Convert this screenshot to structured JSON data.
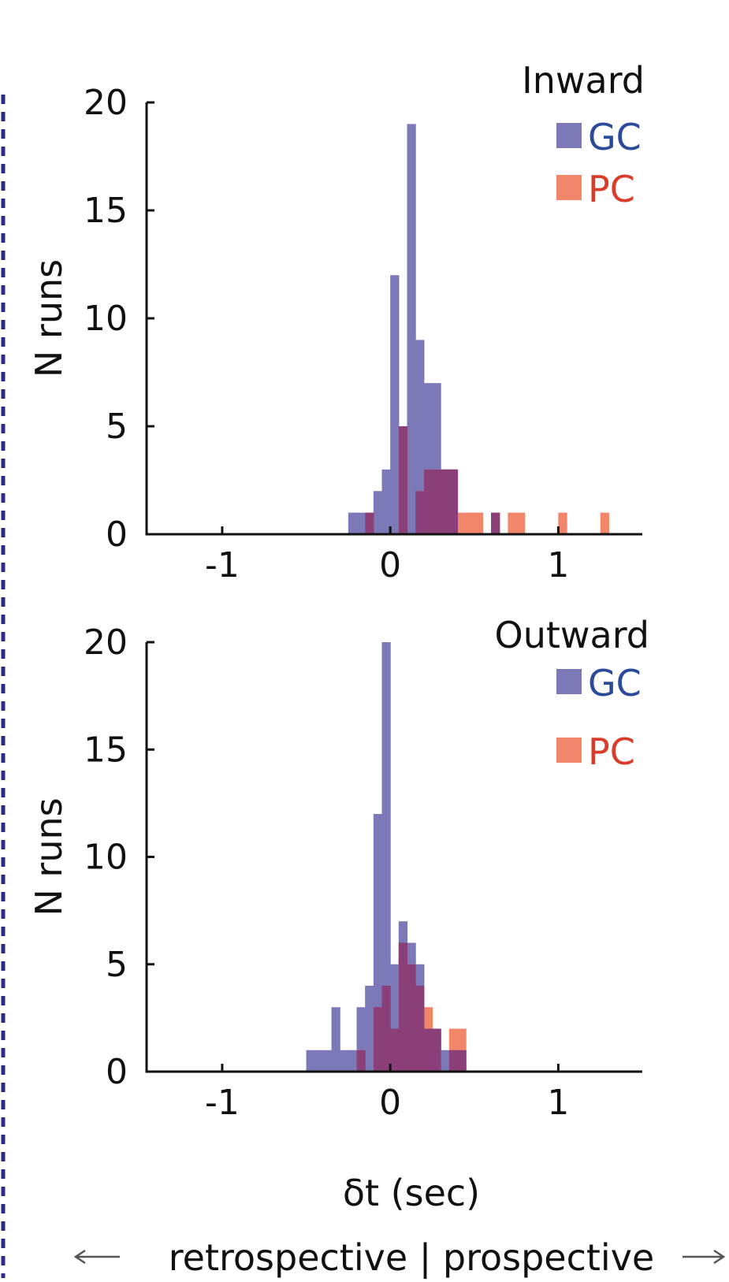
{
  "colors": {
    "gc": "#7b79b8",
    "pc": "#f2866a",
    "overlap": "#8a3f78",
    "gc_text": "#2b4a9a",
    "pc_text": "#d93d2a",
    "axis": "#111111",
    "frame_dash": "#2a2a8a",
    "arrow": "#555555"
  },
  "figure": {
    "xlabel": "δt (sec)",
    "direction_note": "retrospective | prospective"
  },
  "chart_data": [
    {
      "type": "bar",
      "title": "Inward",
      "xlabel": "",
      "ylabel": "N runs",
      "xlim": [
        -1.45,
        1.5
      ],
      "ylim": [
        0,
        20
      ],
      "xticks": [
        -1,
        0,
        1
      ],
      "xtick_labels": [
        "-1",
        "0",
        "1"
      ],
      "yticks": [
        0,
        5,
        10,
        15,
        20
      ],
      "ytick_labels": [
        "0",
        "5",
        "10",
        "15",
        "20"
      ],
      "bin_width": 0.05,
      "legend_position": "top-right",
      "series": [
        {
          "name": "GC",
          "color": "#7b79b8",
          "bins": [
            {
              "x0": -0.25,
              "count": 1
            },
            {
              "x0": -0.2,
              "count": 1
            },
            {
              "x0": -0.15,
              "count": 1
            },
            {
              "x0": -0.1,
              "count": 2
            },
            {
              "x0": -0.05,
              "count": 3
            },
            {
              "x0": 0.0,
              "count": 12
            },
            {
              "x0": 0.05,
              "count": 5
            },
            {
              "x0": 0.1,
              "count": 19
            },
            {
              "x0": 0.15,
              "count": 9
            },
            {
              "x0": 0.2,
              "count": 7
            },
            {
              "x0": 0.25,
              "count": 7
            },
            {
              "x0": 0.3,
              "count": 3
            },
            {
              "x0": 0.35,
              "count": 3
            },
            {
              "x0": 0.6,
              "count": 1
            }
          ]
        },
        {
          "name": "PC",
          "color": "#f2866a",
          "bins": [
            {
              "x0": -0.15,
              "count": 1
            },
            {
              "x0": 0.05,
              "count": 5
            },
            {
              "x0": 0.15,
              "count": 2
            },
            {
              "x0": 0.2,
              "count": 3
            },
            {
              "x0": 0.25,
              "count": 3
            },
            {
              "x0": 0.3,
              "count": 3
            },
            {
              "x0": 0.35,
              "count": 3
            },
            {
              "x0": 0.4,
              "count": 1
            },
            {
              "x0": 0.45,
              "count": 1
            },
            {
              "x0": 0.5,
              "count": 1
            },
            {
              "x0": 0.6,
              "count": 1
            },
            {
              "x0": 0.7,
              "count": 1
            },
            {
              "x0": 0.75,
              "count": 1
            },
            {
              "x0": 1.0,
              "count": 1
            },
            {
              "x0": 1.25,
              "count": 1
            }
          ]
        }
      ]
    },
    {
      "type": "bar",
      "title": "Outward",
      "xlabel": "δt (sec)",
      "ylabel": "N runs",
      "xlim": [
        -1.45,
        1.5
      ],
      "ylim": [
        0,
        20
      ],
      "xticks": [
        -1,
        0,
        1
      ],
      "xtick_labels": [
        "-1",
        "0",
        "1"
      ],
      "yticks": [
        0,
        5,
        10,
        15,
        20
      ],
      "ytick_labels": [
        "0",
        "5",
        "10",
        "15",
        "20"
      ],
      "bin_width": 0.05,
      "legend_position": "top-right",
      "series": [
        {
          "name": "GC",
          "color": "#7b79b8",
          "bins": [
            {
              "x0": -0.5,
              "count": 1
            },
            {
              "x0": -0.45,
              "count": 1
            },
            {
              "x0": -0.4,
              "count": 1
            },
            {
              "x0": -0.35,
              "count": 3
            },
            {
              "x0": -0.3,
              "count": 1
            },
            {
              "x0": -0.25,
              "count": 1
            },
            {
              "x0": -0.2,
              "count": 3
            },
            {
              "x0": -0.15,
              "count": 4
            },
            {
              "x0": -0.1,
              "count": 12
            },
            {
              "x0": -0.05,
              "count": 20
            },
            {
              "x0": 0.0,
              "count": 5
            },
            {
              "x0": 0.05,
              "count": 7
            },
            {
              "x0": 0.1,
              "count": 6
            },
            {
              "x0": 0.15,
              "count": 5
            },
            {
              "x0": 0.2,
              "count": 2
            },
            {
              "x0": 0.25,
              "count": 2
            },
            {
              "x0": 0.3,
              "count": 1
            },
            {
              "x0": 0.35,
              "count": 1
            },
            {
              "x0": 0.4,
              "count": 1
            }
          ]
        },
        {
          "name": "PC",
          "color": "#f2866a",
          "bins": [
            {
              "x0": -0.2,
              "count": 1
            },
            {
              "x0": -0.1,
              "count": 3
            },
            {
              "x0": -0.05,
              "count": 4
            },
            {
              "x0": 0.0,
              "count": 2
            },
            {
              "x0": 0.05,
              "count": 6
            },
            {
              "x0": 0.1,
              "count": 5
            },
            {
              "x0": 0.15,
              "count": 4
            },
            {
              "x0": 0.2,
              "count": 3
            },
            {
              "x0": 0.25,
              "count": 2
            },
            {
              "x0": 0.35,
              "count": 2
            },
            {
              "x0": 0.4,
              "count": 2
            }
          ]
        }
      ]
    }
  ]
}
